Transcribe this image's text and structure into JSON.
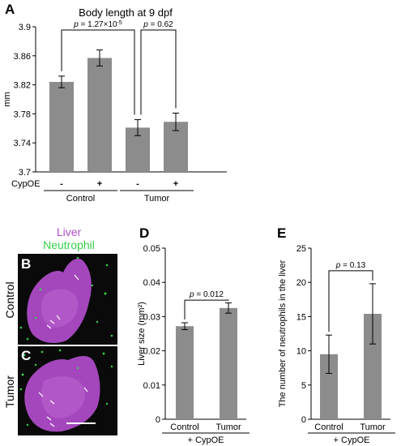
{
  "panels": {
    "A": "A",
    "B": "B",
    "C": "C",
    "D": "D",
    "E": "E"
  },
  "micrograph": {
    "legend_liver": "Liver",
    "legend_neutrophil": "Neutrophil",
    "label_B": "Control",
    "label_C": "Tumor",
    "colors": {
      "liver": "#b04ec8",
      "neutrophil": "#35d04a",
      "background": "#0a0a0a"
    }
  },
  "chart_data": [
    {
      "id": "A",
      "type": "bar",
      "title": "Body length at 9 dpf",
      "ylabel": "mm",
      "xlabel": "",
      "row_label": "CypOE",
      "categories": [
        "-",
        "+",
        "-",
        "+"
      ],
      "groups": [
        {
          "label": "Control",
          "indices": [
            0,
            1
          ]
        },
        {
          "label": "Tumor",
          "indices": [
            2,
            3
          ]
        }
      ],
      "values": [
        3.824,
        3.857,
        3.761,
        3.769
      ],
      "errors": [
        0.008,
        0.011,
        0.011,
        0.012
      ],
      "ylim": [
        3.7,
        3.9
      ],
      "yticks": [
        "3.7",
        "3.74",
        "3.78",
        "3.82",
        "3.86",
        "3.9"
      ],
      "annotations": [
        {
          "text": "p = 1.27×10",
          "sup": "-5",
          "from": 0,
          "to": 2
        },
        {
          "text": "p = 0.62",
          "sup": "",
          "from": 2,
          "to": 3
        }
      ],
      "bar_color": "#8c8c8c",
      "grid": false
    },
    {
      "id": "D",
      "type": "bar",
      "title": "",
      "ylabel": "Liver size (mm²)",
      "xlabel": "+ CypOE",
      "categories": [
        "Control",
        "Tumor"
      ],
      "values": [
        0.0272,
        0.0325
      ],
      "errors": [
        0.001,
        0.0015
      ],
      "ylim": [
        0,
        0.05
      ],
      "yticks": [
        "0",
        "0.01",
        "0.02",
        "0.03",
        "0.04",
        "0.05"
      ],
      "annotations": [
        {
          "text": "p = 0.012",
          "from": 0,
          "to": 1
        }
      ],
      "bar_color": "#8c8c8c",
      "grid": false
    },
    {
      "id": "E",
      "type": "bar",
      "title": "",
      "ylabel": "The number of neutrophils in the liver",
      "xlabel": "+ CypOE",
      "categories": [
        "Control",
        "Tumor"
      ],
      "values": [
        9.5,
        15.4
      ],
      "errors": [
        2.8,
        4.4
      ],
      "ylim": [
        0,
        25
      ],
      "yticks": [
        "0",
        "5",
        "10",
        "15",
        "20",
        "25"
      ],
      "annotations": [
        {
          "text": "p = 0.13",
          "from": 0,
          "to": 1
        }
      ],
      "bar_color": "#8c8c8c",
      "grid": false
    }
  ]
}
